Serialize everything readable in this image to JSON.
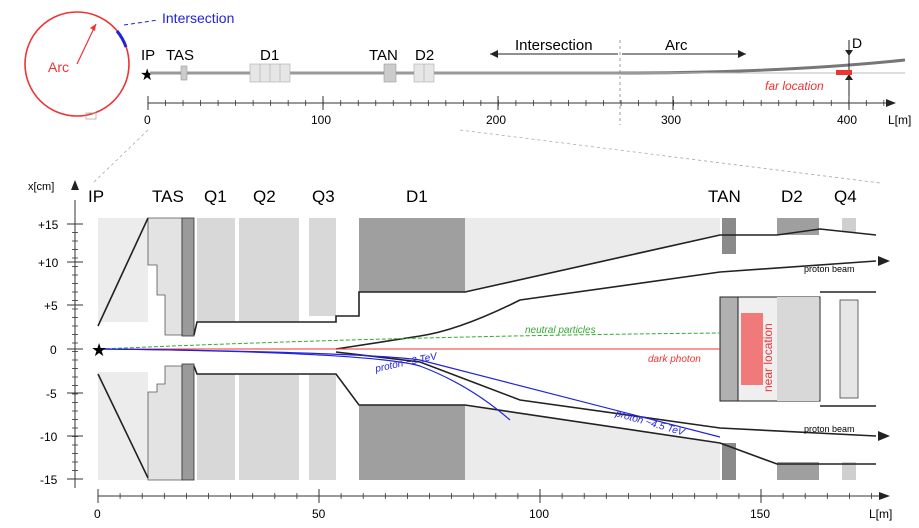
{
  "top": {
    "ring_labels": {
      "intersection": "Intersection",
      "arc": "Arc"
    },
    "elements": {
      "ip": "IP",
      "tas": "TAS",
      "d1": "D1",
      "tan": "TAN",
      "d2": "D2"
    },
    "region_intersection": "Intersection",
    "region_arc": "Arc",
    "d_label": "D",
    "far_location": "far location",
    "axis_unit": "L[m]",
    "ticks": [
      "0",
      "100",
      "200",
      "300",
      "400"
    ]
  },
  "main": {
    "y_axis_title": "x[cm]",
    "y_ticks": [
      "+15",
      "+10",
      "+5",
      "0",
      "-5",
      "-10",
      "-15"
    ],
    "x_ticks": [
      "0",
      "50",
      "100",
      "150"
    ],
    "x_unit": "L[m]",
    "magnets": {
      "ip": "IP",
      "tas": "TAS",
      "q1": "Q1",
      "q2": "Q2",
      "q3": "Q3",
      "d1": "D1",
      "tan": "TAN",
      "d2": "D2",
      "q4": "Q4"
    },
    "beams": {
      "proton_upper": "proton beam",
      "proton_lower": "proton beam",
      "neutral": "neutral particles",
      "dark_photon": "dark photon",
      "proton_3tev": "proton ~3 TeV",
      "proton_45tev": "proton ~4.5 TeV"
    },
    "near_location": "near location"
  },
  "colors": {
    "red": "#ee3333",
    "blue": "#2222dd",
    "green": "#33aa33",
    "magnet_light": "#dcdcdc",
    "magnet_dark": "#9a9a9a"
  }
}
